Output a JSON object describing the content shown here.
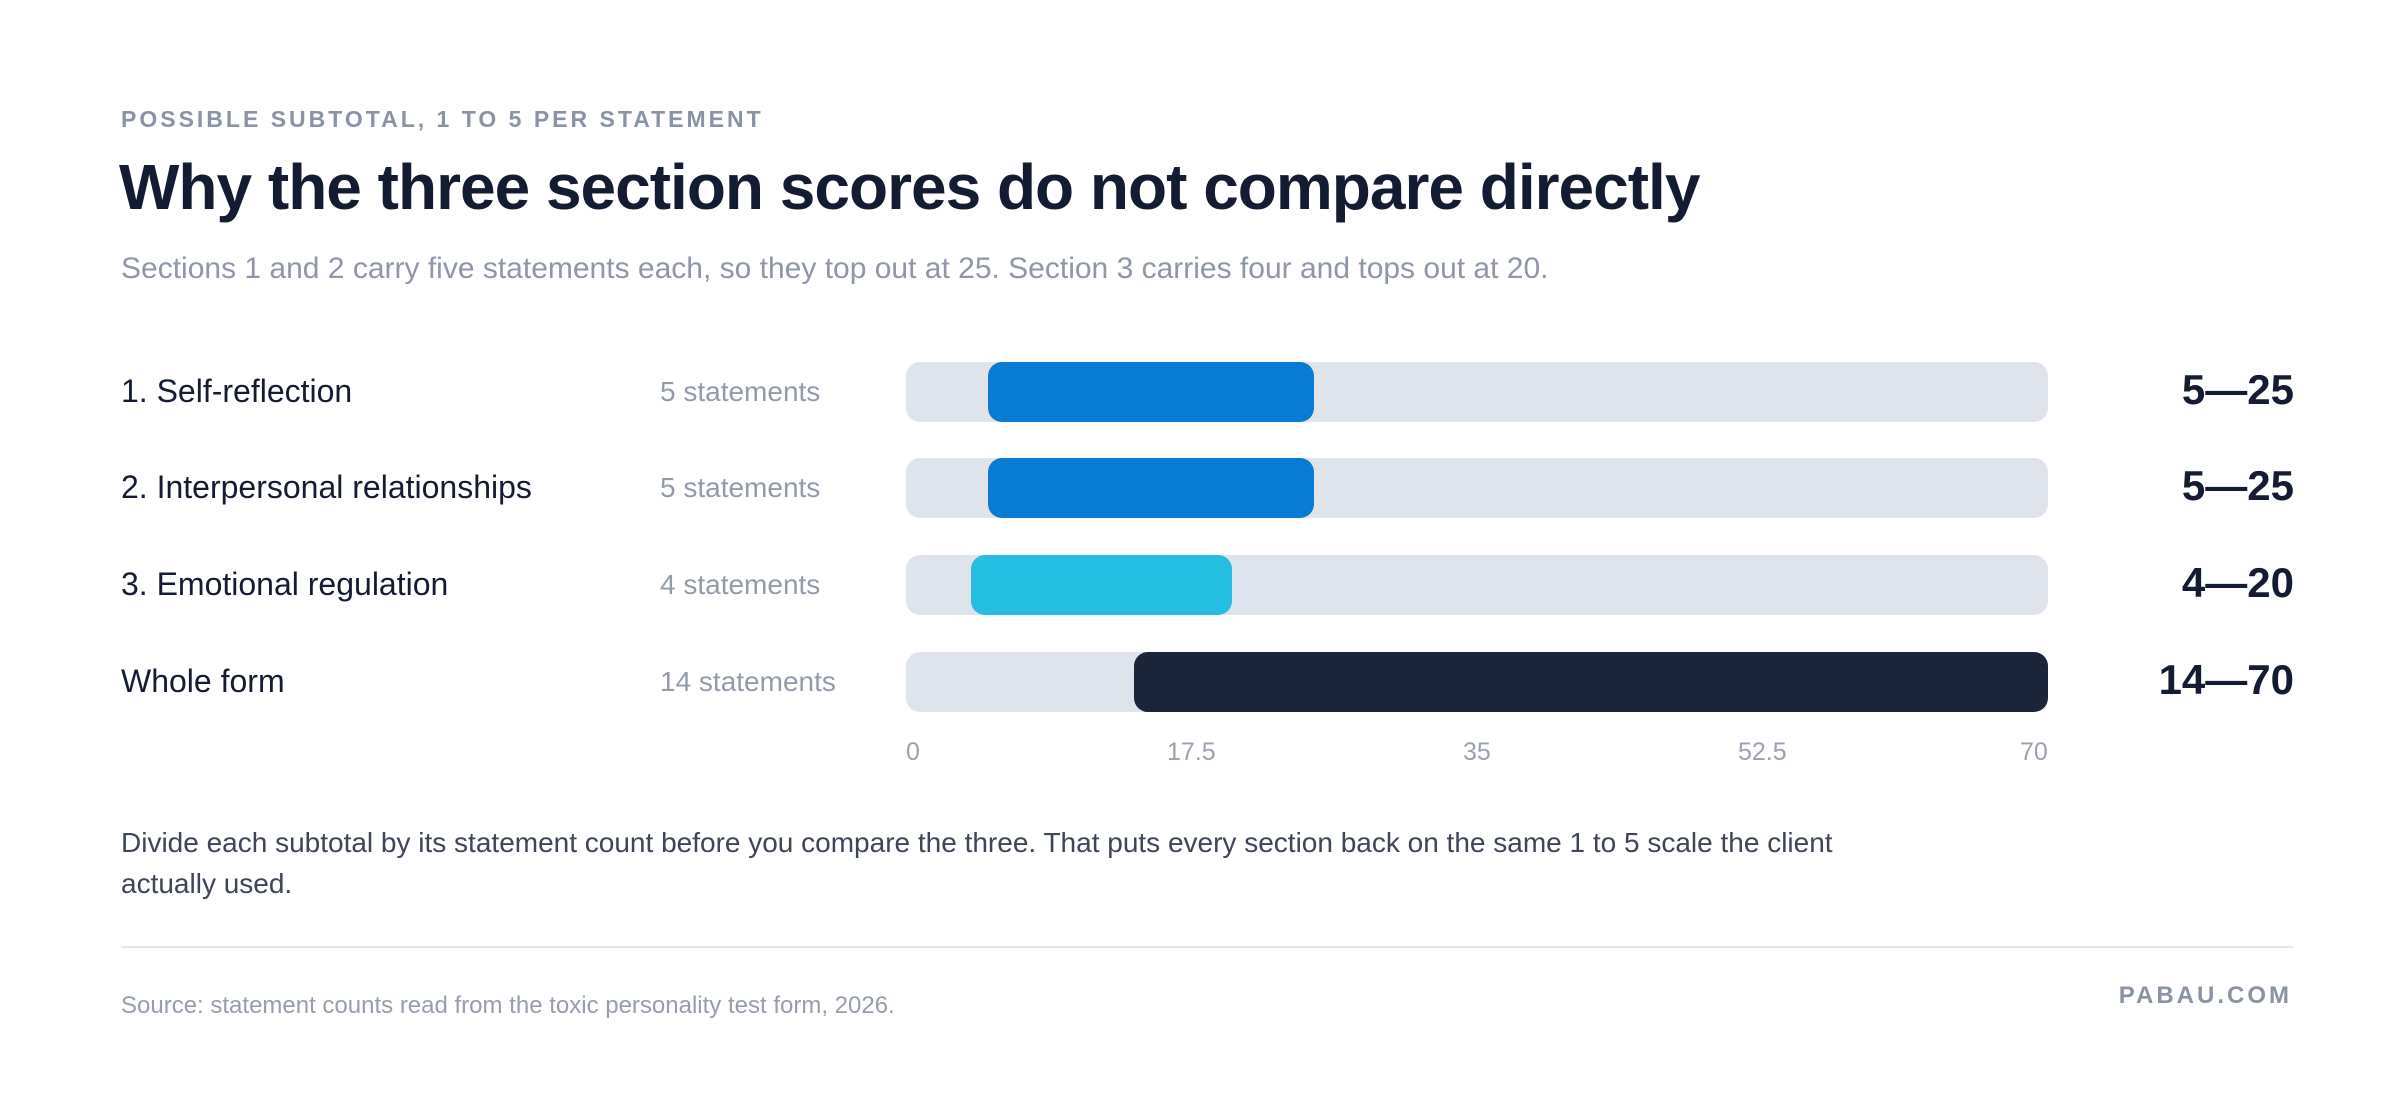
{
  "header": {
    "eyebrow": "POSSIBLE SUBTOTAL, 1 TO 5 PER STATEMENT",
    "title": "Why the three section scores do not compare directly",
    "subtitle": "Sections 1 and 2 carry five statements each, so they top out at 25. Section 3 carries four and tops out at 20."
  },
  "chart_data": {
    "type": "bar",
    "orientation": "horizontal",
    "subtype": "range",
    "xlim": [
      0,
      70
    ],
    "ticks": [
      "0",
      "17.5",
      "35",
      "52.5",
      "70"
    ],
    "grid": false,
    "rows": [
      {
        "label": "1. Self-reflection",
        "count_label": "5 statements",
        "min": 5,
        "max": 25,
        "range_label": "5—25",
        "color": "#087bd4"
      },
      {
        "label": "2. Interpersonal relationships",
        "count_label": "5 statements",
        "min": 5,
        "max": 25,
        "range_label": "5—25",
        "color": "#087bd4"
      },
      {
        "label": "3. Emotional regulation",
        "count_label": "4 statements",
        "min": 4,
        "max": 20,
        "range_label": "4—20",
        "color": "#26bde2"
      },
      {
        "label": "Whole form",
        "count_label": "14 statements",
        "min": 14,
        "max": 70,
        "range_label": "14—70",
        "color": "#1b253b"
      }
    ],
    "track_color": "#dfe3ec"
  },
  "note": "Divide each subtotal by its statement count before you compare the three. That puts every section back on the same 1 to 5 scale the client actually used.",
  "footer": {
    "source": "Source: statement counts read from the toxic personality test form, 2026.",
    "brand": "PABAU.COM"
  }
}
